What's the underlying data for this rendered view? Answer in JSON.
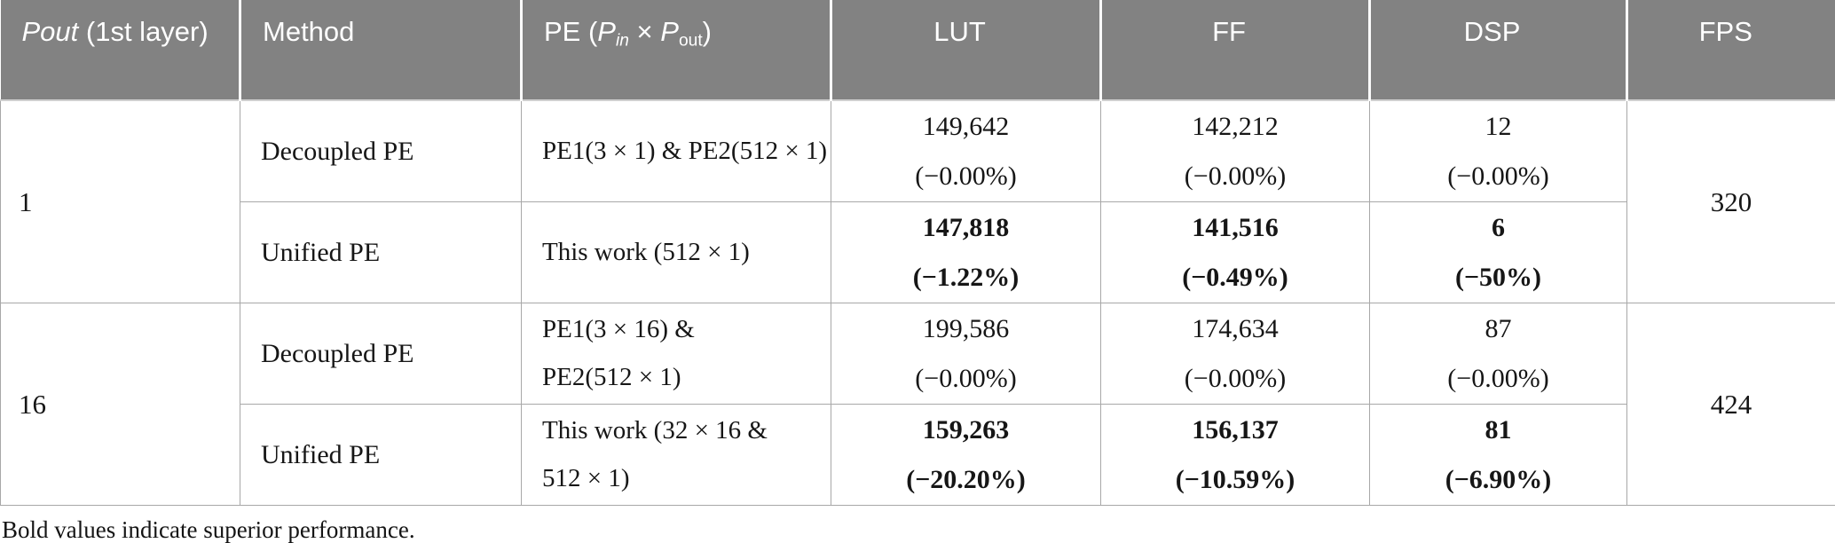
{
  "colors": {
    "header_bg": "#828282",
    "header_text": "#ffffff",
    "body_border": "#a8a8a8",
    "body_text": "#161616"
  },
  "table": {
    "header": {
      "pout_italic": "Pout",
      "pout_rest": " (1st layer)",
      "method": "Method",
      "pe": {
        "prefix": "PE (",
        "p1": "P",
        "sub1": "in",
        "times": " × ",
        "p2": "P",
        "sub2": "out",
        "suffix": ")"
      },
      "lut": "LUT",
      "ff": "FF",
      "dsp": "DSP",
      "fps": "FPS"
    },
    "groups": [
      {
        "pout": "1",
        "fps": "320",
        "rows": [
          {
            "method": "Decoupled PE",
            "pe_line1": "PE1(3 × 1) & PE2(512 × 1)",
            "pe_line2": "",
            "lut": "149,642",
            "lut_pct": "(−0.00%)",
            "ff": "142,212",
            "ff_pct": "(−0.00%)",
            "dsp": "12",
            "dsp_pct": "(−0.00%)",
            "bold": false
          },
          {
            "method": "Unified PE",
            "pe_line1": "This work (512 × 1)",
            "pe_line2": "",
            "lut": "147,818",
            "lut_pct": "(−1.22%)",
            "ff": "141,516",
            "ff_pct": "(−0.49%)",
            "dsp": "6",
            "dsp_pct": "(−50%)",
            "bold": true
          }
        ]
      },
      {
        "pout": "16",
        "fps": "424",
        "rows": [
          {
            "method": "Decoupled PE",
            "pe_line1": "PE1(3 × 16) &",
            "pe_line2": "PE2(512 × 1)",
            "lut": "199,586",
            "lut_pct": "(−0.00%)",
            "ff": "174,634",
            "ff_pct": "(−0.00%)",
            "dsp": "87",
            "dsp_pct": "(−0.00%)",
            "bold": false
          },
          {
            "method": "Unified PE",
            "pe_line1": "This work (32 × 16 &",
            "pe_line2": "512 × 1)",
            "lut": "159,263",
            "lut_pct": "(−20.20%)",
            "ff": "156,137",
            "ff_pct": "(−10.59%)",
            "dsp": "81",
            "dsp_pct": "(−6.90%)",
            "bold": true
          }
        ]
      }
    ],
    "footnote": "Bold values indicate superior performance."
  }
}
